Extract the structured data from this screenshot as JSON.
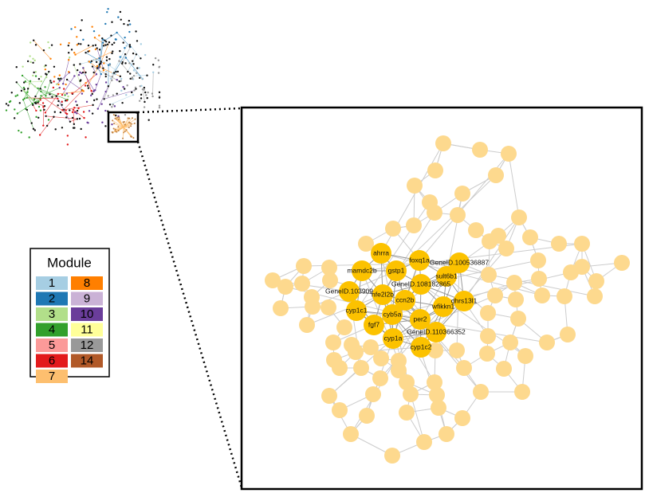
{
  "legend": {
    "title": "Module",
    "items": [
      {
        "label": "1",
        "color": "#a6cee3"
      },
      {
        "label": "2",
        "color": "#1f78b4"
      },
      {
        "label": "3",
        "color": "#b2df8a"
      },
      {
        "label": "4",
        "color": "#33a02c"
      },
      {
        "label": "5",
        "color": "#fb9a99"
      },
      {
        "label": "6",
        "color": "#e31a1c"
      },
      {
        "label": "7",
        "color": "#fdbf6f"
      },
      {
        "label": "8",
        "color": "#ff7f00"
      },
      {
        "label": "9",
        "color": "#cab2d6"
      },
      {
        "label": "10",
        "color": "#6a3d9a"
      },
      {
        "label": "11",
        "color": "#ffff99"
      },
      {
        "label": "12",
        "color": "#999999"
      },
      {
        "label": "14",
        "color": "#b15928"
      }
    ]
  },
  "genes": [
    "ahrra",
    "mamdc2b",
    "foxq1a",
    "GeneID.100536887",
    "gstp1",
    "GeneID.108182865",
    "sult6b1",
    "GeneID.103909",
    "nfe2l2b",
    "ccn2b",
    "dhrs13l1",
    "wfikkn1",
    "cyp1c1",
    "cyb5a",
    "fgf7",
    "per2",
    "GeneID.110366352",
    "cyp1a",
    "cyp1c2"
  ]
}
